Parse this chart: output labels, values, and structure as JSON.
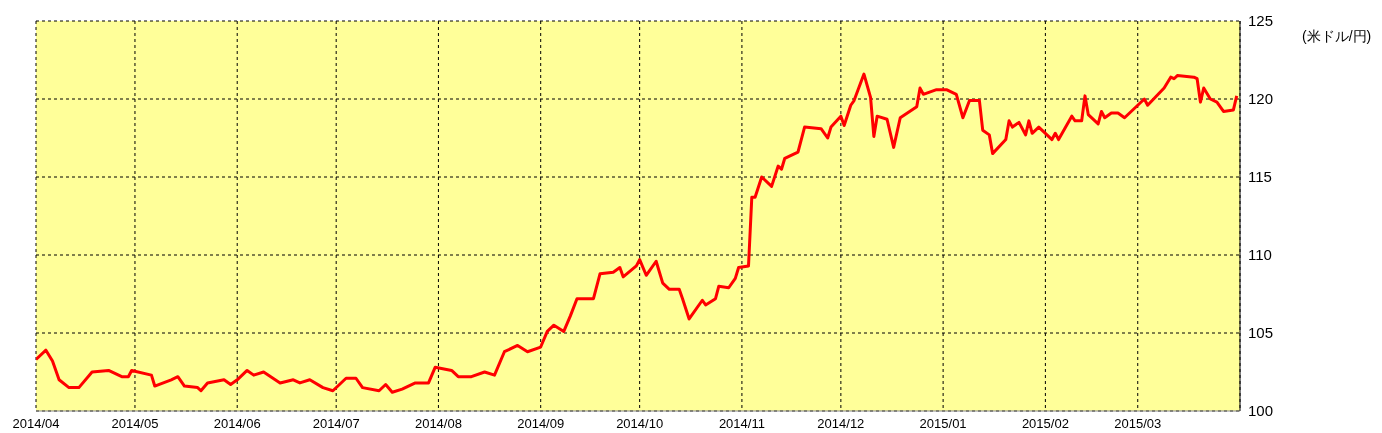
{
  "chart_data": {
    "type": "line",
    "ylabel": "(米ドル/円)",
    "x": [
      "2014-04-01",
      "2014-04-04",
      "2014-04-06",
      "2014-04-08",
      "2014-04-11",
      "2014-04-14",
      "2014-04-18",
      "2014-04-23",
      "2014-04-27",
      "2014-04-29",
      "2014-04-30",
      "2014-05-06",
      "2014-05-07",
      "2014-05-12",
      "2014-05-14",
      "2014-05-16",
      "2014-05-20",
      "2014-05-21",
      "2014-05-23",
      "2014-05-28",
      "2014-05-30",
      "2014-06-01",
      "2014-06-04",
      "2014-06-06",
      "2014-06-09",
      "2014-06-14",
      "2014-06-18",
      "2014-06-20",
      "2014-06-23",
      "2014-06-27",
      "2014-06-30",
      "2014-07-04",
      "2014-07-07",
      "2014-07-09",
      "2014-07-14",
      "2014-07-16",
      "2014-07-18",
      "2014-07-21",
      "2014-07-25",
      "2014-07-29",
      "2014-07-31",
      "2014-08-05",
      "2014-08-07",
      "2014-08-11",
      "2014-08-15",
      "2014-08-18",
      "2014-08-21",
      "2014-08-25",
      "2014-08-28",
      "2014-09-01",
      "2014-09-03",
      "2014-09-05",
      "2014-09-08",
      "2014-09-10",
      "2014-09-12",
      "2014-09-15",
      "2014-09-17",
      "2014-09-19",
      "2014-09-23",
      "2014-09-25",
      "2014-09-26",
      "2014-09-30",
      "2014-10-01",
      "2014-10-03",
      "2014-10-06",
      "2014-10-08",
      "2014-10-10",
      "2014-10-13",
      "2014-10-14",
      "2014-10-16",
      "2014-10-20",
      "2014-10-21",
      "2014-10-24",
      "2014-10-25",
      "2014-10-28",
      "2014-10-30",
      "2014-10-31",
      "2014-11-03",
      "2014-11-04",
      "2014-11-05",
      "2014-11-07",
      "2014-11-10",
      "2014-11-12",
      "2014-11-13",
      "2014-11-14",
      "2014-11-18",
      "2014-11-20",
      "2014-11-25",
      "2014-11-27",
      "2014-11-28",
      "2014-12-01",
      "2014-12-02",
      "2014-12-04",
      "2014-12-05",
      "2014-12-08",
      "2014-12-10",
      "2014-12-11",
      "2014-12-12",
      "2014-12-15",
      "2014-12-17",
      "2014-12-19",
      "2014-12-24",
      "2014-12-25",
      "2014-12-26",
      "2014-12-30",
      "2015-01-02",
      "2015-01-05",
      "2015-01-07",
      "2015-01-09",
      "2015-01-12",
      "2015-01-13",
      "2015-01-15",
      "2015-01-16",
      "2015-01-20",
      "2015-01-21",
      "2015-01-22",
      "2015-01-24",
      "2015-01-26",
      "2015-01-27",
      "2015-01-28",
      "2015-01-30",
      "2015-02-03",
      "2015-02-04",
      "2015-02-05",
      "2015-02-09",
      "2015-02-10",
      "2015-02-12",
      "2015-02-13",
      "2015-02-14",
      "2015-02-17",
      "2015-02-18",
      "2015-02-19",
      "2015-02-21",
      "2015-02-23",
      "2015-02-25",
      "2015-02-27",
      "2015-03-03",
      "2015-03-04",
      "2015-03-09",
      "2015-03-11",
      "2015-03-12",
      "2015-03-13",
      "2015-03-18",
      "2015-03-19",
      "2015-03-20",
      "2015-03-21",
      "2015-03-23",
      "2015-03-25",
      "2015-03-27",
      "2015-03-30",
      "2015-03-31"
    ],
    "series": [
      {
        "color": "#ff0000",
        "values": [
          103.3,
          103.9,
          103.2,
          102.0,
          101.5,
          101.5,
          102.5,
          102.6,
          102.2,
          102.2,
          102.6,
          102.3,
          101.6,
          102.0,
          102.2,
          101.6,
          101.5,
          101.3,
          101.8,
          102.0,
          101.7,
          102.0,
          102.6,
          102.3,
          102.5,
          101.8,
          102.0,
          101.8,
          102.0,
          101.5,
          101.3,
          102.1,
          102.1,
          101.5,
          101.3,
          101.7,
          101.2,
          101.4,
          101.8,
          101.8,
          102.8,
          102.6,
          102.2,
          102.2,
          102.5,
          102.3,
          103.8,
          104.2,
          103.8,
          104.1,
          105.1,
          105.5,
          105.1,
          106.1,
          107.2,
          107.2,
          107.2,
          108.8,
          108.9,
          109.2,
          108.6,
          109.3,
          109.7,
          108.7,
          109.6,
          108.2,
          107.8,
          107.8,
          107.2,
          105.9,
          107.1,
          106.8,
          107.2,
          108.0,
          107.9,
          108.5,
          109.2,
          109.3,
          113.7,
          113.7,
          115.0,
          114.4,
          115.7,
          115.5,
          116.2,
          116.6,
          118.2,
          118.1,
          117.5,
          118.2,
          118.9,
          118.3,
          119.6,
          119.9,
          121.6,
          120.1,
          117.6,
          118.9,
          118.7,
          116.9,
          118.8,
          119.5,
          120.7,
          120.3,
          120.6,
          120.6,
          120.3,
          118.8,
          119.9,
          119.9,
          118.0,
          117.7,
          116.5,
          117.4,
          118.6,
          118.2,
          118.5,
          117.7,
          118.6,
          117.8,
          118.2,
          117.4,
          117.8,
          117.4,
          118.9,
          118.6,
          118.6,
          120.2,
          119.0,
          118.4,
          119.2,
          118.8,
          119.1,
          119.1,
          118.8,
          119.2,
          120.0,
          119.6,
          120.7,
          121.4,
          121.3,
          121.5,
          121.4,
          121.3,
          119.8,
          120.7,
          120.0,
          119.8,
          119.2,
          119.3,
          120.2
        ]
      }
    ],
    "xlim": [
      "2014-04-01",
      "2015-04-01"
    ],
    "xticks": [
      {
        "value": "2014-04",
        "label": "2014/04"
      },
      {
        "value": "2014-05",
        "label": "2014/05"
      },
      {
        "value": "2014-06",
        "label": "2014/06"
      },
      {
        "value": "2014-07",
        "label": "2014/07"
      },
      {
        "value": "2014-08",
        "label": "2014/08"
      },
      {
        "value": "2014-09",
        "label": "2014/09"
      },
      {
        "value": "2014-10",
        "label": "2014/10"
      },
      {
        "value": "2014-11",
        "label": "2014/11"
      },
      {
        "value": "2014-12",
        "label": "2014/12"
      },
      {
        "value": "2015-01",
        "label": "2015/01"
      },
      {
        "value": "2015-02",
        "label": "2015/02"
      },
      {
        "value": "2015-03",
        "label": "2015/03"
      }
    ],
    "ylim": [
      100,
      125
    ],
    "yticks": [
      100,
      105,
      110,
      115,
      120,
      125
    ],
    "grid": true,
    "marker": "none",
    "line_style": "solid"
  }
}
